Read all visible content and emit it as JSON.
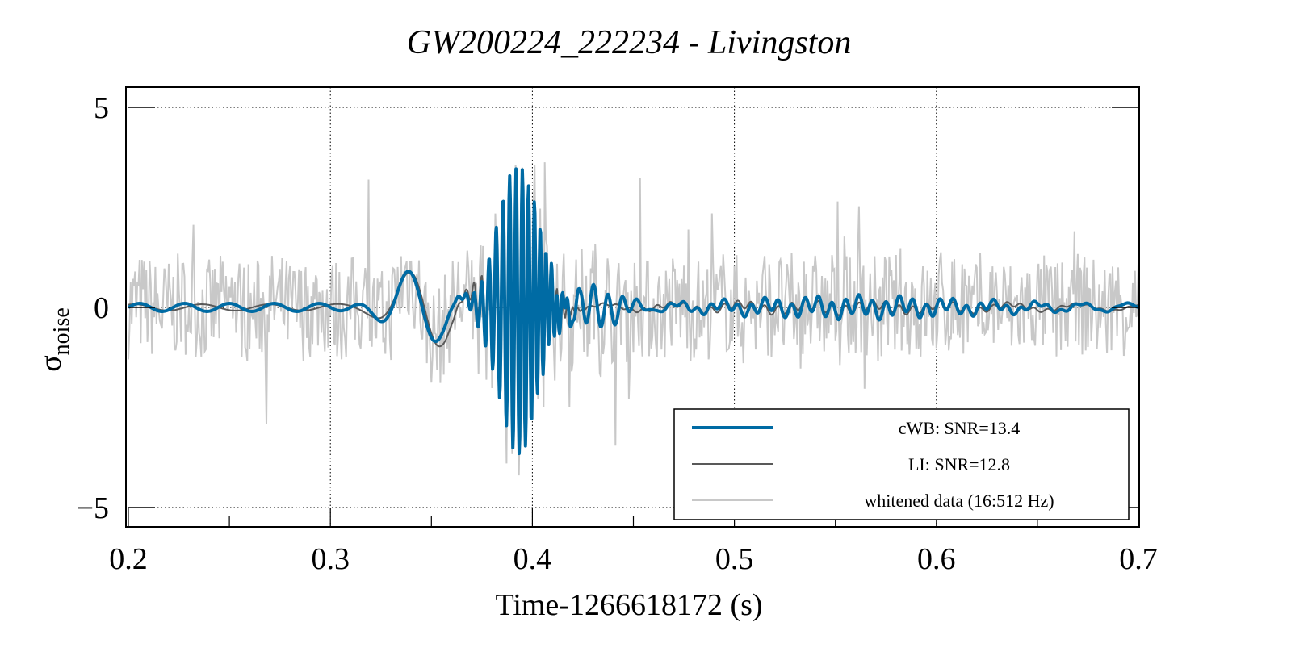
{
  "chart_data": {
    "type": "line",
    "title": "GW200224_222234 - Livingston",
    "xlabel": "Time-1266618172 (s)",
    "ylabel": "σ",
    "ylabel_sub": "noise",
    "xlim": [
      0.2,
      0.7
    ],
    "ylim": [
      -5.5,
      5.5
    ],
    "xticks": [
      0.2,
      0.3,
      0.4,
      0.5,
      0.6,
      0.7
    ],
    "xtick_labels": [
      "0.2",
      "0.3",
      "0.4",
      "0.5",
      "0.6",
      "0.7"
    ],
    "yticks": [
      5,
      0,
      -5
    ],
    "ytick_labels": [
      "5",
      "0",
      "−5"
    ],
    "grid": true,
    "legend_position": "bottom-right",
    "series": [
      {
        "name": "cWB: SNR=13.4",
        "color": "#006ba4",
        "key_points": [
          {
            "x": 0.21,
            "y": 0.1
          },
          {
            "x": 0.22,
            "y": -0.1
          },
          {
            "x": 0.29,
            "y": 0.0
          },
          {
            "x": 0.318,
            "y": 0.6
          },
          {
            "x": 0.33,
            "y": -0.4
          },
          {
            "x": 0.34,
            "y": 0.9
          },
          {
            "x": 0.35,
            "y": -0.9
          },
          {
            "x": 0.357,
            "y": 0.8
          },
          {
            "x": 0.37,
            "y": -1.5
          },
          {
            "x": 0.378,
            "y": 3.0
          },
          {
            "x": 0.386,
            "y": -3.1
          },
          {
            "x": 0.392,
            "y": 3.5
          },
          {
            "x": 0.396,
            "y": -3.9
          },
          {
            "x": 0.4,
            "y": 3.5
          },
          {
            "x": 0.403,
            "y": -1.9
          },
          {
            "x": 0.405,
            "y": 2.0
          },
          {
            "x": 0.44,
            "y": 0.6
          },
          {
            "x": 0.5,
            "y": 0.1
          },
          {
            "x": 0.6,
            "y": 0.2
          },
          {
            "x": 0.7,
            "y": 0.0
          }
        ]
      },
      {
        "name": "LI: SNR=12.8",
        "color": "#595959",
        "key_points": [
          {
            "x": 0.3,
            "y": -0.2
          },
          {
            "x": 0.32,
            "y": 0.3
          },
          {
            "x": 0.36,
            "y": 1.0
          },
          {
            "x": 0.37,
            "y": -1.5
          },
          {
            "x": 0.378,
            "y": 2.0
          },
          {
            "x": 0.392,
            "y": 3.3
          },
          {
            "x": 0.401,
            "y": -3.2
          },
          {
            "x": 0.404,
            "y": 0.7
          }
        ]
      },
      {
        "name": "whitened data (16:512 Hz)",
        "color": "#c8c8c8",
        "key_points": [
          {
            "x": 0.2,
            "y": -1.4
          },
          {
            "x": 0.23,
            "y": 3.3
          },
          {
            "x": 0.232,
            "y": -3.1
          },
          {
            "x": 0.37,
            "y": -3.2
          },
          {
            "x": 0.38,
            "y": 4.7
          },
          {
            "x": 0.4,
            "y": -4.2
          },
          {
            "x": 0.47,
            "y": 2.4
          },
          {
            "x": 0.67,
            "y": 3.0
          },
          {
            "x": 0.682,
            "y": -2.4
          }
        ]
      }
    ]
  }
}
